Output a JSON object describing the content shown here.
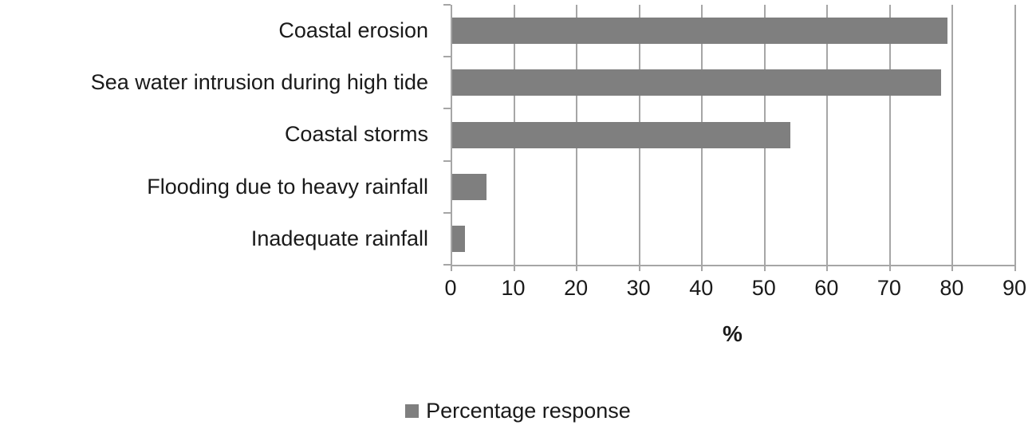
{
  "chart_data": {
    "type": "bar",
    "orientation": "horizontal",
    "title": "",
    "categories": [
      "Coastal erosion",
      "Sea water intrusion during high tide",
      "Coastal storms",
      "Flooding due to heavy rainfall",
      "Inadequate rainfall"
    ],
    "series": [
      {
        "name": "Percentage response",
        "values": [
          79,
          78,
          54,
          5.5,
          2
        ]
      }
    ],
    "xlabel": "%",
    "ylabel": "",
    "xlim": [
      0,
      90
    ],
    "xticks": [
      0,
      10,
      20,
      30,
      40,
      50,
      60,
      70,
      80,
      90
    ],
    "grid": true,
    "legend_position": "bottom",
    "colors": {
      "bar": "#7f7f7f",
      "axis": "#a6a6a6",
      "text": "#1a1a1a",
      "background": "#ffffff"
    }
  },
  "legend": {
    "label": "Percentage response"
  },
  "axis": {
    "xlabel": "%"
  }
}
